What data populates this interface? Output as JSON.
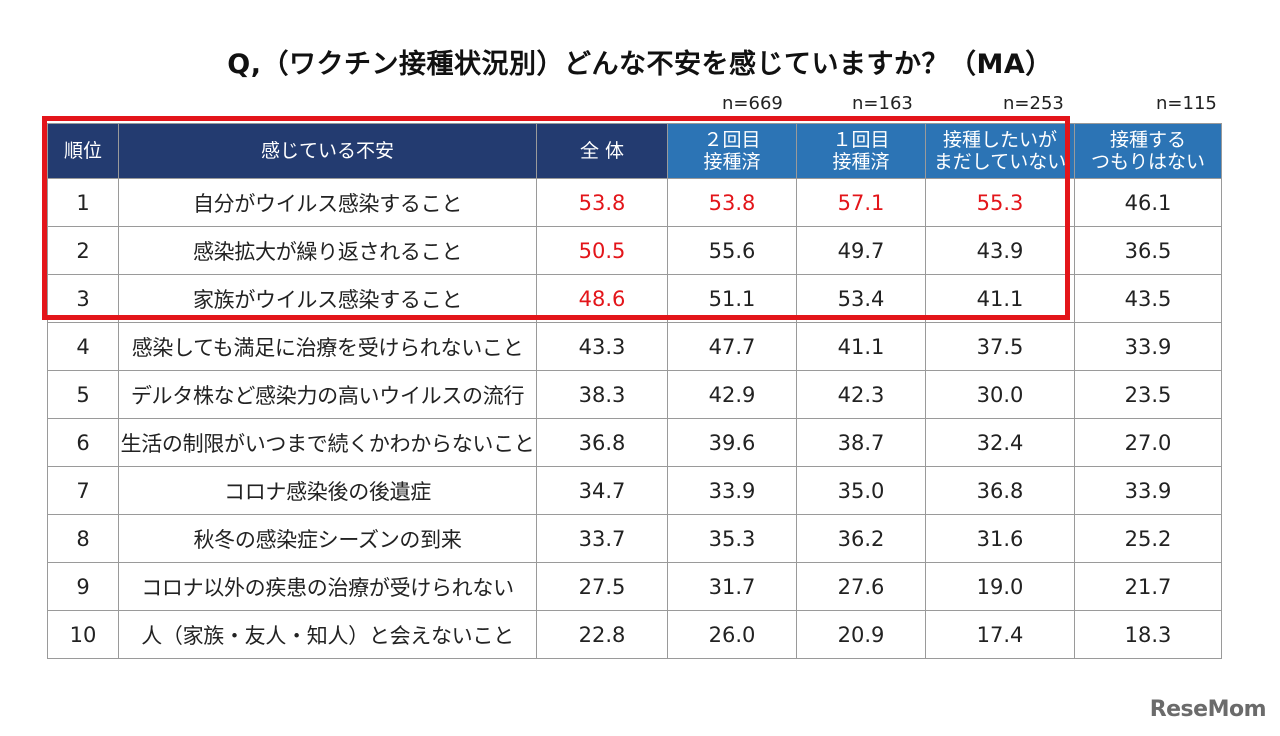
{
  "title": "Q,（ワクチン接種状況別）どんな不安を感じていますか？（MA）",
  "sample_sizes": [
    "n=669",
    "n=163",
    "n=253",
    "n=115"
  ],
  "logo": "ReseMom",
  "highlight_color": "#e3151a",
  "header_colors": {
    "dark": "#233b70",
    "light": "#2c74b5"
  },
  "chart_data": {
    "type": "table",
    "title": "Q,（ワクチン接種状況別）どんな不安を感じていますか？（MA）",
    "columns": [
      "順位",
      "感じている不安",
      "全 体",
      "２回目接種済",
      "１回目接種済",
      "接種したいがまだしていない",
      "接種するつもりはない"
    ],
    "column_lines": [
      [
        "順位"
      ],
      [
        "感じている不安"
      ],
      [
        "全 体"
      ],
      [
        "２回目",
        "接種済"
      ],
      [
        "１回目",
        "接種済"
      ],
      [
        "接種したいが",
        "まだしていない"
      ],
      [
        "接種する",
        "つもりはない"
      ]
    ],
    "rows": [
      {
        "rank": "1",
        "item": "自分がウイルス感染すること",
        "values": [
          "53.8",
          "53.8",
          "57.1",
          "55.3",
          "46.1"
        ],
        "red": [
          true,
          true,
          true,
          true,
          false
        ]
      },
      {
        "rank": "2",
        "item": "感染拡大が繰り返されること",
        "values": [
          "50.5",
          "55.6",
          "49.7",
          "43.9",
          "36.5"
        ],
        "red": [
          true,
          false,
          false,
          false,
          false
        ]
      },
      {
        "rank": "3",
        "item": "家族がウイルス感染すること",
        "values": [
          "48.6",
          "51.1",
          "53.4",
          "41.1",
          "43.5"
        ],
        "red": [
          true,
          false,
          false,
          false,
          false
        ]
      },
      {
        "rank": "4",
        "item": "感染しても満足に治療を受けられないこと",
        "values": [
          "43.3",
          "47.7",
          "41.1",
          "37.5",
          "33.9"
        ],
        "red": [
          false,
          false,
          false,
          false,
          false
        ]
      },
      {
        "rank": "5",
        "item": "デルタ株など感染力の高いウイルスの流行",
        "values": [
          "38.3",
          "42.9",
          "42.3",
          "30.0",
          "23.5"
        ],
        "red": [
          false,
          false,
          false,
          false,
          false
        ]
      },
      {
        "rank": "6",
        "item": "生活の制限がいつまで続くかわからないこと",
        "values": [
          "36.8",
          "39.6",
          "38.7",
          "32.4",
          "27.0"
        ],
        "red": [
          false,
          false,
          false,
          false,
          false
        ]
      },
      {
        "rank": "7",
        "item": "コロナ感染後の後遺症",
        "values": [
          "34.7",
          "33.9",
          "35.0",
          "36.8",
          "33.9"
        ],
        "red": [
          false,
          false,
          false,
          false,
          false
        ]
      },
      {
        "rank": "8",
        "item": "秋冬の感染症シーズンの到来",
        "values": [
          "33.7",
          "35.3",
          "36.2",
          "31.6",
          "25.2"
        ],
        "red": [
          false,
          false,
          false,
          false,
          false
        ]
      },
      {
        "rank": "9",
        "item": "コロナ以外の疾患の治療が受けられない",
        "values": [
          "27.5",
          "31.7",
          "27.6",
          "19.0",
          "21.7"
        ],
        "red": [
          false,
          false,
          false,
          false,
          false
        ]
      },
      {
        "rank": "10",
        "item": "人（家族・友人・知人）と会えないこと",
        "values": [
          "22.8",
          "26.0",
          "20.9",
          "17.4",
          "18.3"
        ],
        "red": [
          false,
          false,
          false,
          false,
          false
        ]
      }
    ]
  }
}
